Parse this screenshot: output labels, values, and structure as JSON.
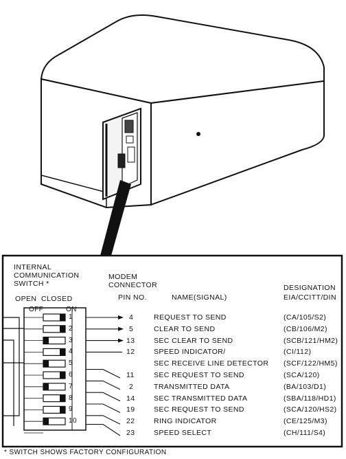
{
  "headers": {
    "switch": [
      "INTERNAL",
      "COMMUNICATION",
      "SWITCH *"
    ],
    "open_closed": "OPEN  CLOSED",
    "off": "OFF",
    "on": "ON",
    "modem": [
      "MODEM",
      "CONNECTOR",
      "PIN NO."
    ],
    "name": "NAME(SIGNAL)",
    "designation": [
      "DESIGNATION",
      "EIA/CCITT/DIN"
    ]
  },
  "rows": [
    {
      "switch": "1",
      "state": "on",
      "pin": "4",
      "name": "REQUEST TO SEND",
      "designation": "(CA/105/S2)"
    },
    {
      "switch": "2",
      "state": "on",
      "pin": "5",
      "name": "CLEAR TO SEND",
      "designation": "(CB/106/M2)"
    },
    {
      "switch": "3",
      "state": "off",
      "pin": "13",
      "name": "SEC CLEAR TO SEND",
      "designation": "(SCB/121/HM2)"
    },
    {
      "switch": "4",
      "state": "on",
      "pin": "12",
      "name": "SPEED INDICATOR/",
      "designation": "(CI/112)"
    },
    {
      "switch": "5",
      "state": "off",
      "pin": "",
      "name": "SEC RECEIVE LINE DETECTOR",
      "designation": "(SCF/122/HM5)"
    },
    {
      "switch": "6",
      "state": "on",
      "pin": "11",
      "name": "SEC REQUEST TO SEND",
      "designation": "(SCA/120)"
    },
    {
      "switch": "7",
      "state": "off",
      "pin": "2",
      "name": "TRANSMITTED DATA",
      "designation": "(BA/103/D1)"
    },
    {
      "switch": "8",
      "state": "on",
      "pin": "14",
      "name": "SEC TRANSMITTED DATA",
      "designation": "(SBA/118/HD1)"
    },
    {
      "switch": "9",
      "state": "on",
      "pin": "19",
      "name": "SEC REQUEST TO SEND",
      "designation": "(SCA/120/HS2)"
    },
    {
      "switch": "10",
      "state": "off",
      "pin": "22",
      "name": "RING INDICATOR",
      "designation": "(CE/125/M3)"
    },
    {
      "switch": "",
      "state": "",
      "pin": "23",
      "name": "SPEED SELECT",
      "designation": "(CH/111/S4)"
    }
  ],
  "footnote": "* SWITCH SHOWS FACTORY CONFIGURATION"
}
